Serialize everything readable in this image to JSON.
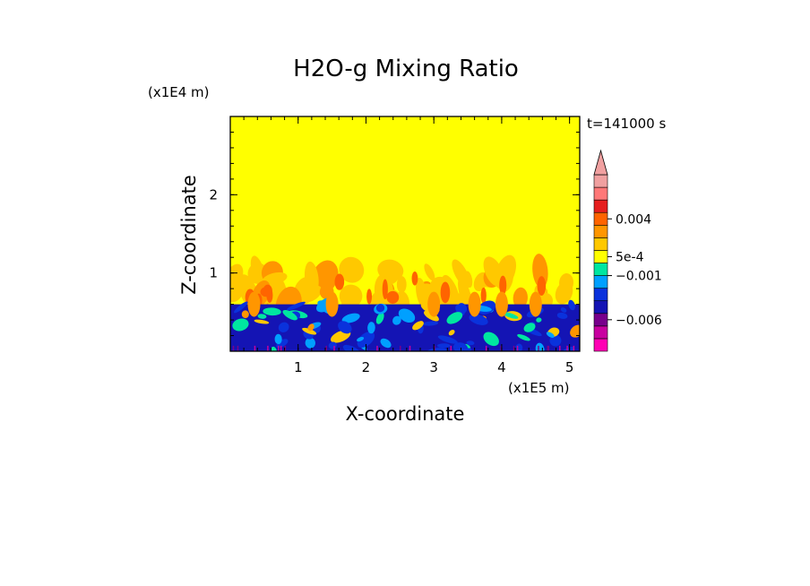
{
  "chart_data": {
    "type": "heatmap",
    "title": "H2O-g Mixing Ratio",
    "xlabel": "X-coordinate",
    "ylabel": "Z-coordinate",
    "x_scale_label": "(x1E5 m)",
    "y_scale_label": "(x1E4 m)",
    "time_label": "t=141000 s",
    "xlim": [
      0,
      5.15
    ],
    "ylim": [
      0,
      3.0
    ],
    "x_ticks": [
      "1",
      "2",
      "3",
      "4",
      "5"
    ],
    "y_ticks": [
      "1",
      "2"
    ],
    "colorbar": {
      "colors": [
        "#ff00b4",
        "#c800a0",
        "#78008c",
        "#1414b4",
        "#0a32dc",
        "#00a0ff",
        "#00e6a0",
        "#ffff00",
        "#ffc800",
        "#ff9600",
        "#ff6400",
        "#e61e1e",
        "#ff7878",
        "#f0a0a0"
      ],
      "labels": [
        "0.004",
        "5e-4",
        "−0.001",
        "−0.006"
      ],
      "extend": "max"
    },
    "regions": {
      "upper": {
        "z_range": [
          1.0,
          3.0
        ],
        "color": "#ffff00",
        "description_value": "background"
      },
      "boundary_layer_top": 0.6,
      "mixing_zone": [
        0.6,
        1.05
      ]
    }
  }
}
